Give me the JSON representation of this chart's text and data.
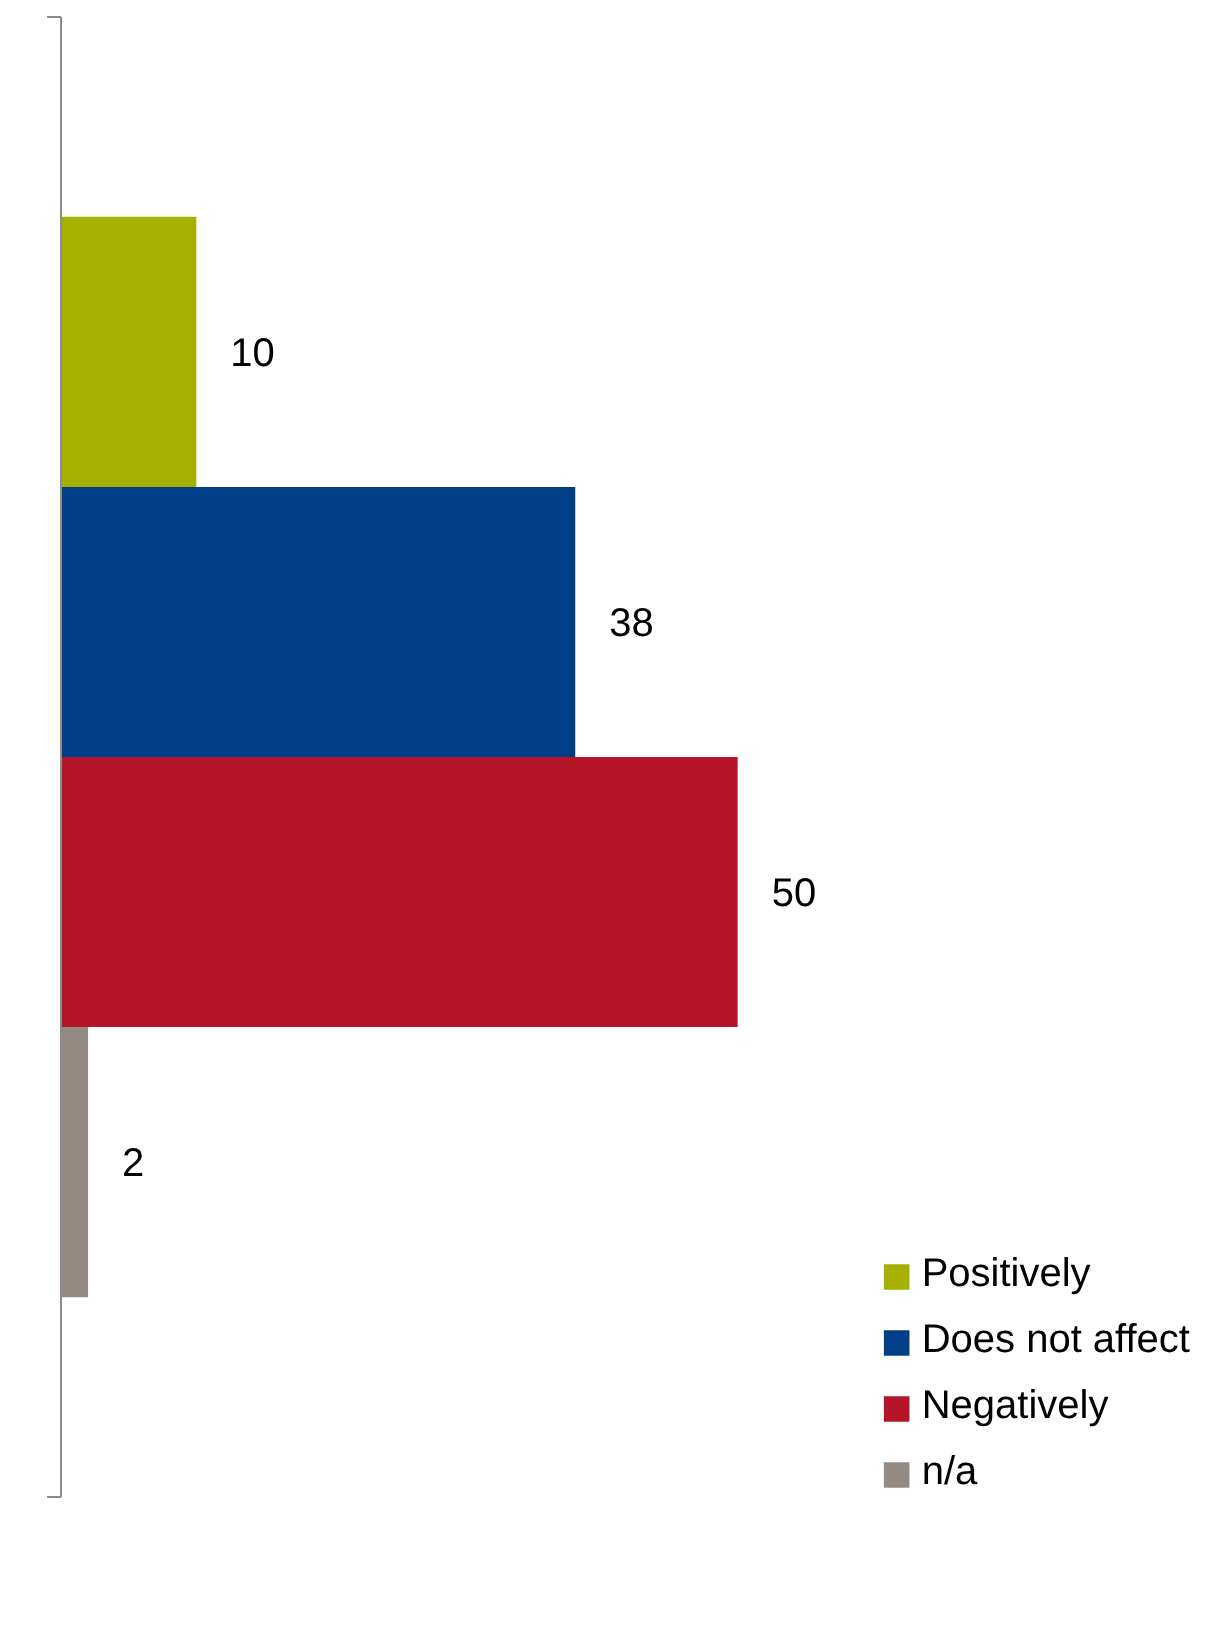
{
  "chart_data": {
    "type": "bar",
    "orientation": "horizontal",
    "categories": [
      null
    ],
    "series": [
      {
        "name": "Positively",
        "color": "#a5b000",
        "values": [
          10
        ]
      },
      {
        "name": "Does not affect",
        "color": "#003f87",
        "values": [
          38
        ]
      },
      {
        "name": "Negatively",
        "color": "#b41528",
        "values": [
          50
        ]
      },
      {
        "name": "n/a",
        "color": "#958a83",
        "values": [
          2
        ]
      }
    ],
    "data_labels": true,
    "legend": "bottom right",
    "grid": false
  }
}
